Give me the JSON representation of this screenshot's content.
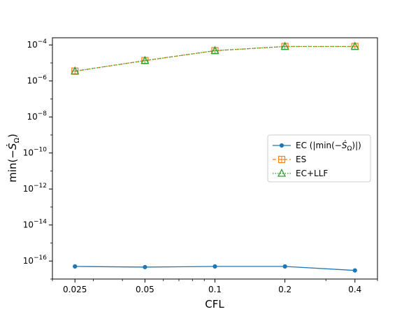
{
  "chart_data": {
    "type": "line",
    "xscale": "log",
    "yscale": "log",
    "xlabel": "CFL",
    "ylabel": "min(−Ṡ_Ω)",
    "x": [
      0.025,
      0.05,
      0.1,
      0.2,
      0.4
    ],
    "x_tick_labels": [
      "0.025",
      "0.05",
      "0.1",
      "0.2",
      "0.4"
    ],
    "ylim": [
      1e-17,
      0.00025
    ],
    "y_ticks": [
      {
        "value": 1e-16,
        "base": "10",
        "exp": "−16"
      },
      {
        "value": 1e-14,
        "base": "10",
        "exp": "−14"
      },
      {
        "value": 1e-12,
        "base": "10",
        "exp": "−12"
      },
      {
        "value": 1e-10,
        "base": "10",
        "exp": "−10"
      },
      {
        "value": 1e-08,
        "base": "10",
        "exp": "−8"
      },
      {
        "value": 1e-06,
        "base": "10",
        "exp": "−6"
      },
      {
        "value": 0.0001,
        "base": "10",
        "exp": "−4"
      }
    ],
    "grid": false,
    "legend_position": "center-right",
    "series": [
      {
        "name": "EC (|min(−Ṡ_Ω)|)",
        "color": "#1f77b4",
        "linestyle": "solid",
        "marker": "circle",
        "values": [
          5e-17,
          4.6e-17,
          5e-17,
          5e-17,
          3e-17
        ]
      },
      {
        "name": "ES",
        "color": "#ff7f0e",
        "linestyle": "dashed",
        "marker": "square-plus",
        "values": [
          3.5e-06,
          1.35e-05,
          4.8e-05,
          8.2e-05,
          8.2e-05
        ]
      },
      {
        "name": "EC+LLF",
        "color": "#2ca02c",
        "linestyle": "dotted",
        "marker": "triangle",
        "values": [
          3.5e-06,
          1.35e-05,
          4.8e-05,
          8.2e-05,
          8.2e-05
        ]
      }
    ]
  }
}
